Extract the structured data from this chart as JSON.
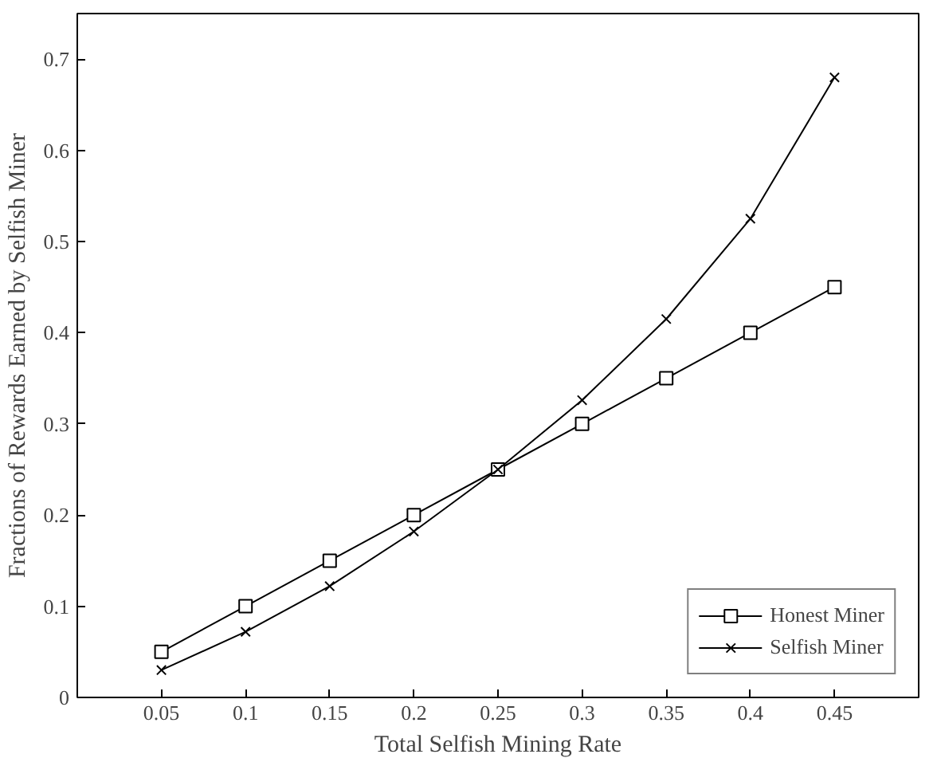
{
  "chart_data": {
    "type": "line",
    "xlabel": "Total Selfish Mining Rate",
    "ylabel": "Fractions of Rewards Earned by Selfish Miner",
    "x": [
      0.05,
      0.1,
      0.15,
      0.2,
      0.25,
      0.3,
      0.35,
      0.4,
      0.45
    ],
    "series": [
      {
        "name": "Honest Miner",
        "color": "#000000",
        "marker": "square",
        "values": [
          0.05,
          0.1,
          0.15,
          0.2,
          0.25,
          0.3,
          0.35,
          0.4,
          0.45
        ]
      },
      {
        "name": "Selfish Miner",
        "color": "#000000",
        "marker": "cross",
        "values": [
          0.03,
          0.072,
          0.122,
          0.182,
          0.25,
          0.326,
          0.415,
          0.525,
          0.68
        ]
      }
    ],
    "xlim": [
      0,
      0.5
    ],
    "ylim": [
      0,
      0.75
    ],
    "xticks": [
      0.05,
      0.1,
      0.15,
      0.2,
      0.25,
      0.3,
      0.35,
      0.4,
      0.45
    ],
    "yticks": [
      0,
      0.1,
      0.2,
      0.3,
      0.4,
      0.5,
      0.6,
      0.7
    ],
    "grid": false,
    "legend": "bottom right",
    "line_style": "solid"
  }
}
